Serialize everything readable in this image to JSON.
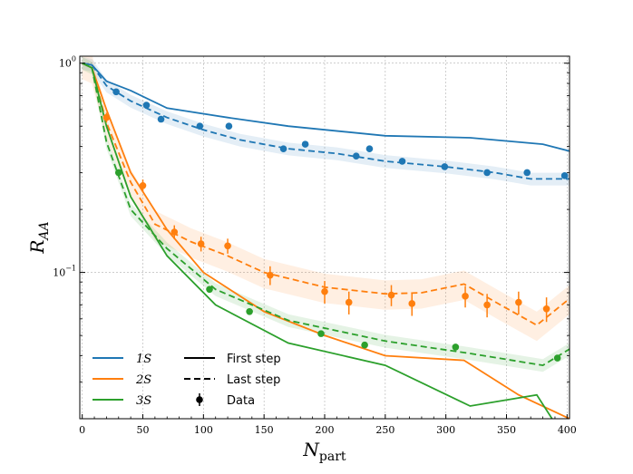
{
  "chart_data": {
    "type": "line",
    "xlabel": "N",
    "xlabel_sub": "part",
    "ylabel": "R",
    "ylabel_sub": "AA",
    "xlim": [
      -2,
      402
    ],
    "ylim": [
      0.02,
      1.08
    ],
    "yscale": "log",
    "grid": true,
    "xticks": [
      0,
      50,
      100,
      150,
      200,
      250,
      300,
      350,
      400
    ],
    "yticks": [
      {
        "value": 1.0,
        "base": "10",
        "exp": "0"
      },
      {
        "value": 0.1,
        "base": "10",
        "exp": "−1"
      }
    ],
    "series": [
      {
        "name": "1S",
        "color": "#1f77b4",
        "first_step": {
          "x": [
            0,
            8,
            20,
            40,
            70,
            120,
            170,
            250,
            320,
            380,
            402
          ],
          "y": [
            1.0,
            0.98,
            0.82,
            0.74,
            0.61,
            0.55,
            0.5,
            0.45,
            0.44,
            0.41,
            0.38
          ]
        },
        "last_step": {
          "x": [
            0,
            8,
            20,
            40,
            70,
            100,
            130,
            170,
            210,
            250,
            300,
            340,
            370,
            402
          ],
          "y": [
            1.0,
            0.98,
            0.78,
            0.66,
            0.55,
            0.48,
            0.43,
            0.39,
            0.37,
            0.34,
            0.32,
            0.3,
            0.28,
            0.28
          ]
        },
        "band_halfwidth": 0.07,
        "data": {
          "x": [
            28,
            53,
            65,
            97,
            121,
            166,
            184,
            226,
            237,
            264,
            299,
            334,
            367,
            398
          ],
          "y": [
            0.73,
            0.63,
            0.54,
            0.5,
            0.5,
            0.39,
            0.41,
            0.36,
            0.39,
            0.34,
            0.32,
            0.3,
            0.3,
            0.29
          ],
          "err": [
            0,
            0,
            0,
            0,
            0,
            0,
            0,
            0,
            0,
            0,
            0,
            0,
            0,
            0
          ]
        }
      },
      {
        "name": "2S",
        "color": "#ff7f0e",
        "first_step": {
          "x": [
            0,
            8,
            20,
            40,
            70,
            100,
            150,
            200,
            250,
            315,
            360,
            402
          ],
          "y": [
            1.0,
            0.95,
            0.6,
            0.3,
            0.16,
            0.1,
            0.065,
            0.05,
            0.04,
            0.038,
            0.026,
            0.02
          ]
        },
        "last_step": {
          "x": [
            0,
            8,
            20,
            40,
            60,
            90,
            120,
            150,
            200,
            250,
            280,
            315,
            345,
            375,
            402
          ],
          "y": [
            1.0,
            0.95,
            0.52,
            0.27,
            0.17,
            0.14,
            0.12,
            0.1,
            0.085,
            0.079,
            0.08,
            0.088,
            0.07,
            0.056,
            0.075
          ]
        },
        "band_halfwidth": 0.16,
        "data": {
          "x": [
            20,
            50,
            76,
            98,
            120,
            155,
            200,
            220,
            255,
            272,
            316,
            334,
            360,
            383
          ],
          "y": [
            0.55,
            0.26,
            0.156,
            0.137,
            0.134,
            0.097,
            0.081,
            0.072,
            0.078,
            0.071,
            0.077,
            0.07,
            0.072,
            0.067
          ],
          "err": [
            0.03,
            0.018,
            0.012,
            0.011,
            0.011,
            0.01,
            0.01,
            0.009,
            0.009,
            0.009,
            0.009,
            0.009,
            0.009,
            0.009
          ]
        }
      },
      {
        "name": "3S",
        "color": "#2ca02c",
        "first_step": {
          "x": [
            0,
            8,
            20,
            40,
            70,
            110,
            170,
            250,
            320,
            375,
            390,
            402
          ],
          "y": [
            1.0,
            0.95,
            0.5,
            0.23,
            0.12,
            0.07,
            0.046,
            0.036,
            0.023,
            0.026,
            0.019,
            0.016
          ]
        },
        "last_step": {
          "x": [
            0,
            8,
            20,
            40,
            70,
            110,
            170,
            250,
            320,
            380,
            402
          ],
          "y": [
            1.0,
            0.95,
            0.42,
            0.2,
            0.13,
            0.083,
            0.059,
            0.047,
            0.041,
            0.036,
            0.043
          ]
        },
        "band_halfwidth": 0.07,
        "data": {
          "x": [
            30,
            105,
            138,
            197,
            233,
            308,
            392
          ],
          "y": [
            0.3,
            0.083,
            0.065,
            0.051,
            0.045,
            0.044,
            0.039
          ],
          "err": [
            0,
            0,
            0,
            0,
            0,
            0,
            0
          ]
        }
      }
    ],
    "legend": {
      "placement": "lower-left",
      "entries": [
        {
          "label": "1S",
          "type": "species"
        },
        {
          "label": "2S",
          "type": "species"
        },
        {
          "label": "3S",
          "type": "species"
        },
        {
          "label": "First step",
          "type": "solid"
        },
        {
          "label": "Last step",
          "type": "dashed"
        },
        {
          "label": "Data",
          "type": "marker"
        }
      ]
    }
  }
}
